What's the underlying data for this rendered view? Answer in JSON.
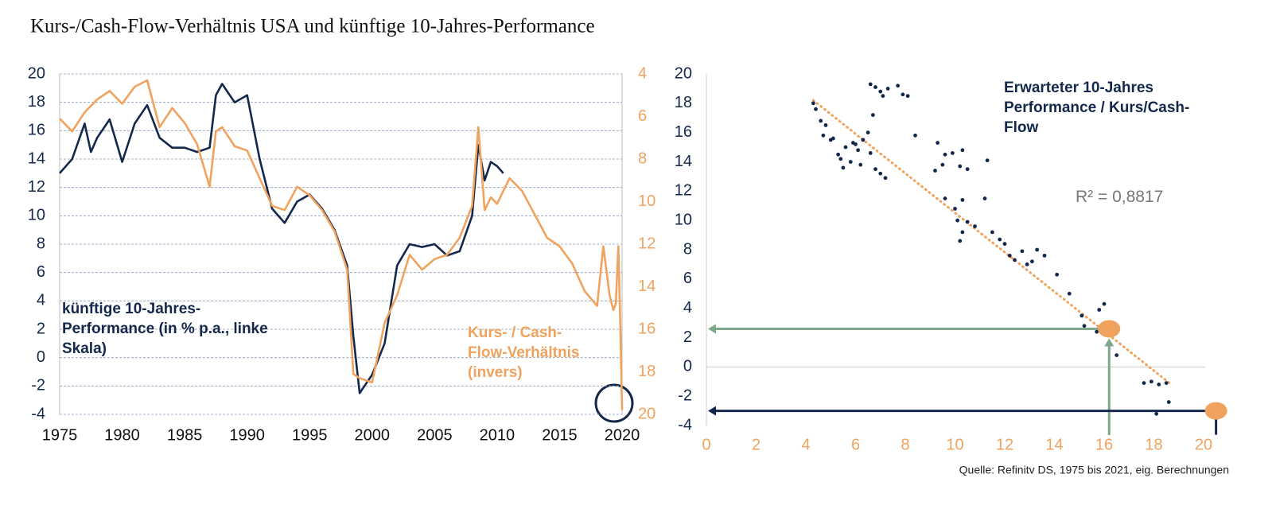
{
  "title": "Kurs-/Cash-Flow-Verhältnis USA und künftige 10-Jahres-Performance",
  "source": "Quelle: Refinitv DS, 1975 bis 2021, eig. Berechnungen",
  "chart_data": [
    {
      "type": "line",
      "x": [
        1975,
        1976,
        1977,
        1977.5,
        1978,
        1979,
        1980,
        1981,
        1982,
        1983,
        1984,
        1985,
        1986,
        1987,
        1987.5,
        1988,
        1989,
        1990,
        1991,
        1992,
        1993,
        1994,
        1995,
        1996,
        1997,
        1998,
        1998.5,
        1999,
        2000,
        2001,
        2002,
        2003,
        2004,
        2005,
        2006,
        2007,
        2008,
        2008.5,
        2009,
        2009.5,
        2010,
        2010.5,
        2011,
        2012,
        2013,
        2014,
        2015,
        2016,
        2017,
        2018,
        2018.5,
        2019,
        2019.3,
        2019.5,
        2019.7,
        2019.85,
        2020
      ],
      "xlim": [
        1975,
        2020
      ],
      "xticks": [
        1975,
        1980,
        1985,
        1990,
        1995,
        2000,
        2005,
        2010,
        2015,
        2020
      ],
      "ylim": [
        -4,
        20
      ],
      "yticks": [
        -4,
        -2,
        0,
        2,
        4,
        6,
        8,
        10,
        12,
        14,
        16,
        18,
        20
      ],
      "y2lim": [
        20,
        4
      ],
      "y2ticks": [
        4,
        6,
        8,
        10,
        12,
        14,
        16,
        18,
        20
      ],
      "grid": true,
      "series": [
        {
          "name": "künftige 10-Jahres-Performance (in % p.a., linke Skala)",
          "color": "#14284b",
          "values": [
            13,
            14,
            16.5,
            14.5,
            15.5,
            16.8,
            13.8,
            16.5,
            17.8,
            15.5,
            14.8,
            14.8,
            14.5,
            14.8,
            18.5,
            19.3,
            18,
            18.5,
            14,
            10.5,
            9.5,
            11,
            11.5,
            10.5,
            9,
            6.5,
            1.5,
            -2.5,
            -1.2,
            1,
            6.5,
            8,
            7.8,
            8,
            7.2,
            7.5,
            10,
            15,
            12.5,
            13.8,
            13.5,
            13,
            null,
            null,
            null,
            null,
            null,
            null,
            null,
            null,
            null,
            null,
            null,
            null,
            null,
            null,
            null
          ]
        },
        {
          "name": "Kurs- / Cash-Flow-Verhältnis (invers)",
          "color": "#f0a35e",
          "axis": "y2",
          "values": [
            6.1,
            6.7,
            5.8,
            5.5,
            5.2,
            4.8,
            5.4,
            4.6,
            4.3,
            6.5,
            5.6,
            6.3,
            7.3,
            9.3,
            6.7,
            6.5,
            7.4,
            7.6,
            8.9,
            10.2,
            10.4,
            9.3,
            9.7,
            10.4,
            11.4,
            13.2,
            18.1,
            18.3,
            18.5,
            15.7,
            14.4,
            12.5,
            13.2,
            12.7,
            12.5,
            11.7,
            10.2,
            6.5,
            10.4,
            9.8,
            10.1,
            9.5,
            8.9,
            9.5,
            10.6,
            11.7,
            12.1,
            12.9,
            14.2,
            14.9,
            12.1,
            14.4,
            15.1,
            14.8,
            12.1,
            15.5,
            19.8
          ]
        }
      ]
    },
    {
      "type": "scatter",
      "title": "Erwarteter 10-Jahres Performance / Kurs/Cash-Flow",
      "annotation": "R² = 0,8817",
      "color": "#14284b",
      "xlim": [
        0,
        20
      ],
      "xticks": [
        0,
        2,
        4,
        6,
        8,
        10,
        12,
        14,
        16,
        18,
        20
      ],
      "ylim": [
        -4,
        20
      ],
      "yticks": [
        -4,
        -2,
        0,
        2,
        4,
        6,
        8,
        10,
        12,
        14,
        16,
        18,
        20
      ],
      "x": [
        4.3,
        4.4,
        4.6,
        4.8,
        4.7,
        5,
        5.1,
        5.3,
        5.4,
        5.5,
        5.6,
        5.8,
        5.9,
        6,
        6.1,
        6.2,
        6.3,
        6.5,
        6.6,
        6.8,
        7,
        7.2,
        6.6,
        6.8,
        7,
        7.1,
        7.3,
        7.7,
        7.9,
        8.1,
        6.7,
        8.4,
        9.3,
        9.6,
        9.9,
        10.2,
        10.3,
        9.2,
        9.5,
        10.5,
        11.3,
        9.6,
        10,
        10.3,
        10.1,
        10.5,
        10.8,
        10.2,
        10.3,
        11.2,
        11.5,
        11.8,
        12,
        12.2,
        12.4,
        12.7,
        12.9,
        13.1,
        13.3,
        13.6,
        14.1,
        14.6,
        15.1,
        15.2,
        15.8,
        16,
        16.5,
        17.6,
        17.9,
        18.2,
        18.5,
        18.6,
        18.1,
        15.7
      ],
      "y": [
        18,
        17.6,
        16.8,
        16.5,
        15.8,
        15.5,
        15.6,
        14.5,
        14.2,
        13.6,
        15,
        14,
        15.3,
        15.2,
        14.8,
        13.8,
        15.5,
        16,
        14.6,
        13.5,
        13.2,
        12.9,
        19.3,
        19.1,
        18.8,
        18.5,
        19,
        19.2,
        18.6,
        18.5,
        17.2,
        15.8,
        15.3,
        14.5,
        14.6,
        13.7,
        14.8,
        13.4,
        13.8,
        13.5,
        14.1,
        11.5,
        10.8,
        11.4,
        10,
        9.9,
        9.6,
        8.6,
        9.2,
        11.5,
        9.2,
        8.7,
        8.4,
        7.6,
        7.3,
        7.9,
        7,
        7.2,
        8,
        7.6,
        6.3,
        5,
        3.5,
        2.8,
        3.9,
        4.3,
        0.8,
        -1.1,
        -1,
        -1.2,
        -1.1,
        -2.4,
        -3.2,
        2.4
      ],
      "trendline": {
        "x": [
          4.3,
          18.7
        ],
        "y": [
          18.2,
          -1.2
        ],
        "color": "#f0a35e"
      },
      "highlight_points": [
        {
          "x": 16.2,
          "y": 2.6
        },
        {
          "x": 20.5,
          "y": -3
        }
      ]
    }
  ]
}
